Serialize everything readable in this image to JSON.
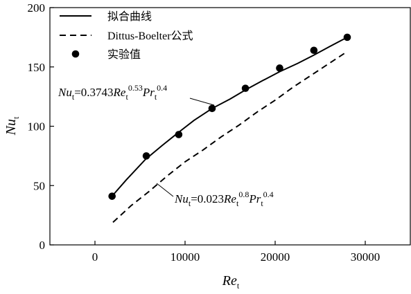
{
  "chart_data": {
    "type": "line",
    "xlabel": {
      "main": "Re",
      "sub": "t"
    },
    "ylabel": {
      "main": "Nu",
      "sub": "t"
    },
    "xlim": [
      -5000,
      35000
    ],
    "ylim": [
      0,
      200
    ],
    "xticks": [
      0,
      10000,
      20000,
      30000
    ],
    "yticks": [
      0,
      50,
      100,
      150,
      200
    ],
    "tick_labels_x": [
      "0",
      "10000",
      "20000",
      "30000"
    ],
    "tick_labels_y": [
      "0",
      "50",
      "100",
      "150",
      "200"
    ],
    "legend_position": "top-left",
    "grid": false,
    "legend": [
      {
        "label": "拟合曲线",
        "style": "solid-line"
      },
      {
        "label": "Dittus-Boelter公式",
        "style": "dashed-line"
      },
      {
        "label": "实验值",
        "style": "marker"
      }
    ],
    "series": [
      {
        "name": "拟合曲线",
        "kind": "line",
        "dash": false,
        "x": [
          2000,
          3500,
          5600,
          7500,
          9300,
          11000,
          13000,
          15000,
          16800,
          18500,
          20500,
          22500,
          24300,
          26000,
          28000
        ],
        "y": [
          42,
          55,
          72,
          84,
          95,
          105,
          115,
          123,
          131,
          138,
          146,
          153,
          160,
          167,
          175
        ]
      },
      {
        "name": "Dittus-Boelter公式",
        "kind": "line",
        "dash": true,
        "x": [
          2000,
          4000,
          6000,
          8000,
          10000,
          12000,
          14000,
          16000,
          18000,
          20000,
          22000,
          24000,
          26000,
          28000
        ],
        "y": [
          19,
          33,
          45,
          58,
          70,
          80,
          91,
          101,
          112,
          122,
          133,
          143,
          153,
          163
        ]
      },
      {
        "name": "实验值",
        "kind": "scatter",
        "x": [
          1900,
          5700,
          9300,
          13000,
          16700,
          20500,
          24300,
          28000
        ],
        "y": [
          41,
          75,
          93,
          115,
          132,
          149,
          164,
          175
        ]
      }
    ],
    "annotations": [
      {
        "id": "fit",
        "parts": [
          {
            "t": "Nu",
            "italic": true
          },
          {
            "t": "t",
            "sub": true
          },
          {
            "t": "=0.3743"
          },
          {
            "t": "Re",
            "italic": true
          },
          {
            "t": "t",
            "sub": true
          },
          {
            "t": "0.53",
            "sup": true
          },
          {
            "t": "Pr",
            "italic": true
          },
          {
            "t": "t",
            "sub": true
          },
          {
            "t": "0.4",
            "sup": true
          }
        ]
      },
      {
        "id": "db",
        "parts": [
          {
            "t": "Nu",
            "italic": true
          },
          {
            "t": "t",
            "sub": true
          },
          {
            "t": "=0.023"
          },
          {
            "t": "Re",
            "italic": true
          },
          {
            "t": "t",
            "sub": true
          },
          {
            "t": "0.8",
            "sup": true
          },
          {
            "t": "Pr",
            "italic": true
          },
          {
            "t": "t",
            "sub": true
          },
          {
            "t": "0.4",
            "sup": true
          }
        ]
      }
    ]
  }
}
